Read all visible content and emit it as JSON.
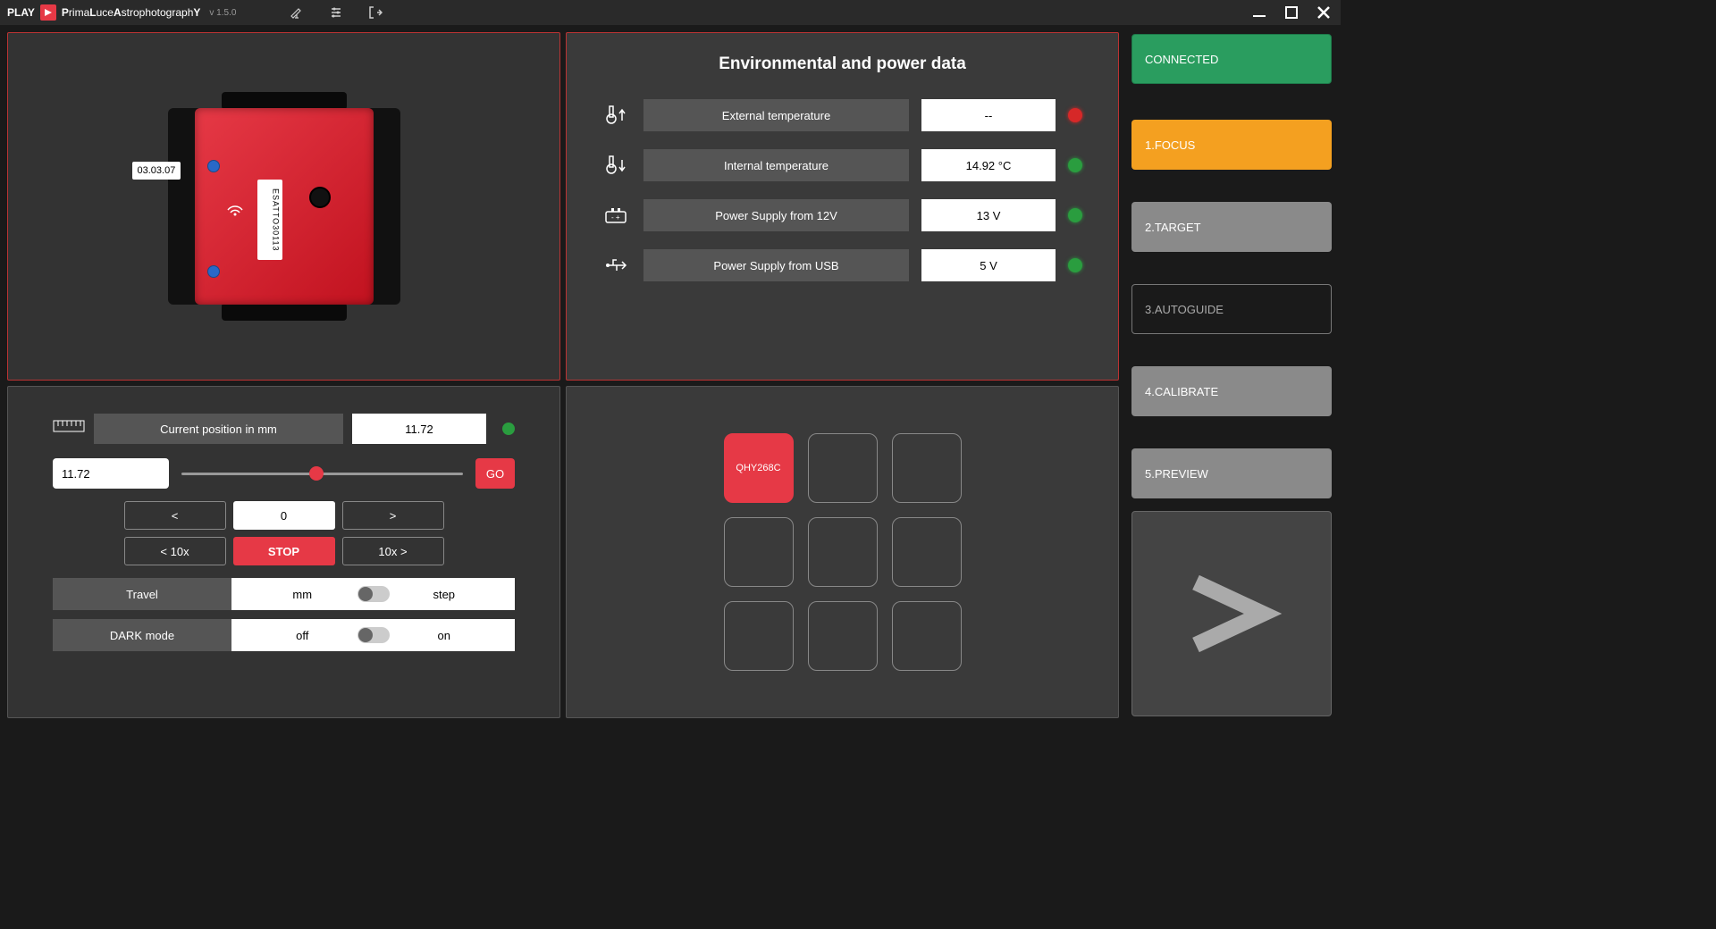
{
  "titlebar": {
    "play": "PLAY",
    "appname_html": "PrimaLuceAstrophotographY",
    "version": "v 1.5.0"
  },
  "device": {
    "fw": "03.03.07",
    "serial": "ESATTO30113"
  },
  "env": {
    "title": "Environmental and power data",
    "rows": [
      {
        "label": "External temperature",
        "value": "--",
        "led": "red",
        "icon": "temp-up"
      },
      {
        "label": "Internal temperature",
        "value": "14.92 °C",
        "led": "green",
        "icon": "temp-down"
      },
      {
        "label": "Power Supply from 12V",
        "value": "13 V",
        "led": "green",
        "icon": "battery"
      },
      {
        "label": "Power Supply from USB",
        "value": "5 V",
        "led": "green",
        "icon": "usb"
      }
    ]
  },
  "focus": {
    "pos_label": "Current position in mm",
    "pos_value": "11.72",
    "input_value": "11.72",
    "slider_percent": 48,
    "go": "GO",
    "btns1": {
      "lt": "<",
      "mid": "0",
      "gt": ">"
    },
    "btns2": {
      "lt": "< 10x",
      "mid": "STOP",
      "gt": "10x >"
    },
    "travel": {
      "label": "Travel",
      "left": "mm",
      "right": "step"
    },
    "dark": {
      "label": "DARK mode",
      "left": "off",
      "right": "on"
    }
  },
  "cams": {
    "cells": [
      "QHY268C",
      "",
      "",
      "",
      "",
      "",
      "",
      "",
      ""
    ],
    "active_index": 0
  },
  "sidebar": {
    "connected": "CONNECTED",
    "items": [
      "1.FOCUS",
      "2.TARGET",
      "3.AUTOGUIDE",
      "4.CALIBRATE",
      "5.PREVIEW"
    ],
    "active_index": 0,
    "outline_indices": [
      2
    ]
  },
  "colors": {
    "accent_red": "#e63946",
    "accent_orange": "#f4a020",
    "accent_green": "#2a9d5f",
    "led_red": "#d62828",
    "led_green": "#2a9d3f",
    "panel_bg": "#3a3a3a",
    "panel_dark": "#333333",
    "label_bg": "#555555"
  }
}
